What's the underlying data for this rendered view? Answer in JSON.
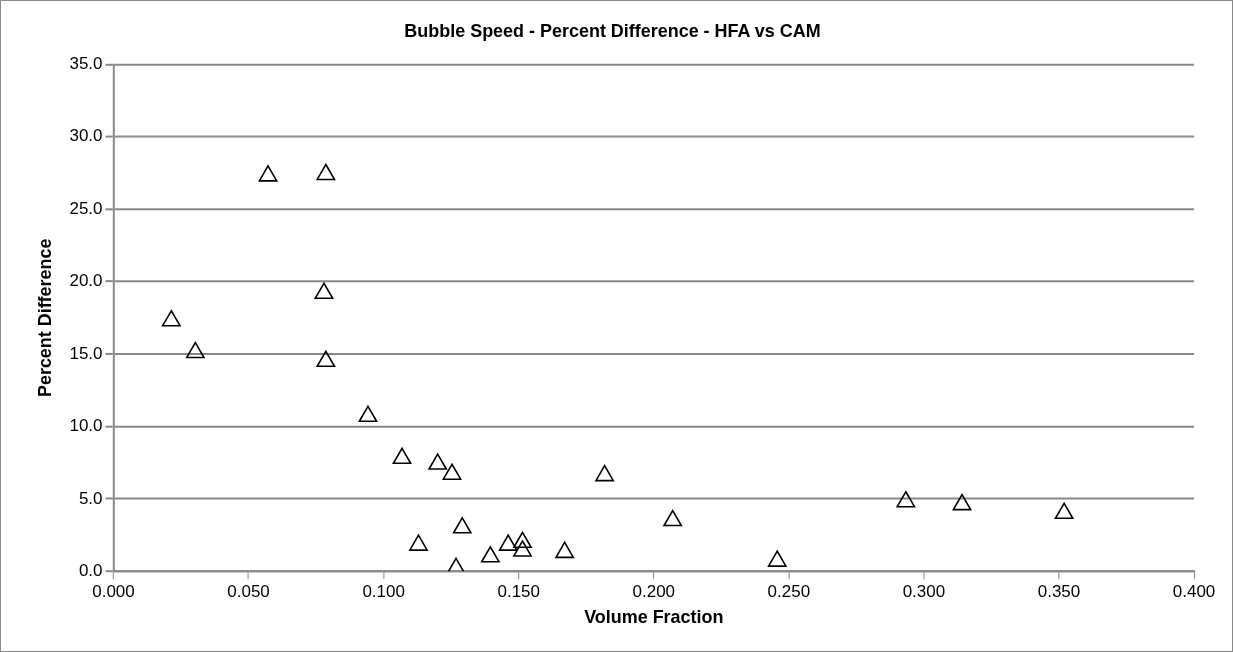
{
  "chart_data": {
    "type": "scatter",
    "title": "Bubble Speed - Percent Difference - HFA vs CAM",
    "xlabel": "Volume Fraction",
    "ylabel": "Percent Difference",
    "x": [
      0.0214,
      0.0303,
      0.0572,
      0.0786,
      0.0779,
      0.0786,
      0.0942,
      0.1068,
      0.12,
      0.1253,
      0.1818,
      0.1129,
      0.1291,
      0.1268,
      0.1395,
      0.1461,
      0.1514,
      0.1514,
      0.167,
      0.207,
      0.2457,
      0.2933,
      0.3141,
      0.3519
    ],
    "series": [
      {
        "color": "#000000",
        "values": [
          17.3,
          15.1,
          27.3,
          27.4,
          19.2,
          14.5,
          10.7,
          7.8,
          7.4,
          6.7,
          6.6,
          1.8,
          3.0,
          0.2,
          1.0,
          1.8,
          2.0,
          1.4,
          1.3,
          3.5,
          0.7,
          4.8,
          4.6,
          4.0
        ]
      }
    ],
    "xlim": [
      0,
      0.4
    ],
    "xticks": [
      {
        "value": 0,
        "label": "0.000"
      },
      {
        "value": 0.05,
        "label": "0.050"
      },
      {
        "value": 0.1,
        "label": "0.100"
      },
      {
        "value": 0.15,
        "label": "0.150"
      },
      {
        "value": 0.2,
        "label": "0.200"
      },
      {
        "value": 0.25,
        "label": "0.250"
      },
      {
        "value": 0.3,
        "label": "0.300"
      },
      {
        "value": 0.35,
        "label": "0.350"
      },
      {
        "value": 0.4,
        "label": "0.400"
      }
    ],
    "ylim": [
      0,
      35
    ],
    "yticks": [
      {
        "value": 0,
        "label": "0.0"
      },
      {
        "value": 5,
        "label": "5.0"
      },
      {
        "value": 10,
        "label": "10.0"
      },
      {
        "value": 15,
        "label": "15.0"
      },
      {
        "value": 20,
        "label": "20.0"
      },
      {
        "value": 25,
        "label": "25.0"
      },
      {
        "value": 30,
        "label": "30.0"
      },
      {
        "value": 35,
        "label": "35.0"
      }
    ],
    "grid": "y",
    "marker": "triangle",
    "legend": false
  }
}
